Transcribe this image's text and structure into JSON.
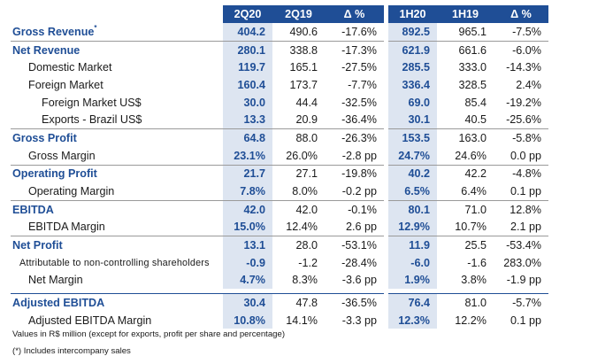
{
  "headers": [
    "2Q20",
    "2Q19",
    "Δ %",
    "1H20",
    "1H19",
    "Δ %"
  ],
  "main_rows": [
    {
      "label": "Gross Revenue",
      "sup": "*",
      "v": [
        "404.2",
        "490.6",
        "-17.6%",
        "892.5",
        "965.1",
        "-7.5%"
      ]
    },
    {
      "label": "Net Revenue",
      "v": [
        "280.1",
        "338.8",
        "-17.3%",
        "621.9",
        "661.6",
        "-6.0%"
      ]
    },
    {
      "label": "Domestic Market",
      "v": [
        "119.7",
        "165.1",
        "-27.5%",
        "285.5",
        "333.0",
        "-14.3%"
      ]
    },
    {
      "label": "Foreign Market",
      "v": [
        "160.4",
        "173.7",
        "-7.7%",
        "336.4",
        "328.5",
        "2.4%"
      ]
    },
    {
      "label": "Foreign Market US$",
      "v": [
        "30.0",
        "44.4",
        "-32.5%",
        "69.0",
        "85.4",
        "-19.2%"
      ]
    },
    {
      "label": "Exports - Brazil US$",
      "v": [
        "13.3",
        "20.9",
        "-36.4%",
        "30.1",
        "40.5",
        "-25.6%"
      ]
    },
    {
      "label": "Gross Profit",
      "v": [
        "64.8",
        "88.0",
        "-26.3%",
        "153.5",
        "163.0",
        "-5.8%"
      ]
    },
    {
      "label": "Gross Margin",
      "v": [
        "23.1%",
        "26.0%",
        "-2.8 pp",
        "24.7%",
        "24.6%",
        "0.0 pp"
      ]
    },
    {
      "label": "Operating Profit",
      "v": [
        "21.7",
        "27.1",
        "-19.8%",
        "40.2",
        "42.2",
        "-4.8%"
      ]
    },
    {
      "label": "Operating Margin",
      "v": [
        "7.8%",
        "8.0%",
        "-0.2 pp",
        "6.5%",
        "6.4%",
        "0.1 pp"
      ]
    },
    {
      "label": "EBITDA",
      "v": [
        "42.0",
        "42.0",
        "-0.1%",
        "80.1",
        "71.0",
        "12.8%"
      ]
    },
    {
      "label": "EBITDA Margin",
      "v": [
        "15.0%",
        "12.4%",
        "2.6 pp",
        "12.9%",
        "10.7%",
        "2.1 pp"
      ]
    },
    {
      "label": "Net Profit",
      "v": [
        "13.1",
        "28.0",
        "-53.1%",
        "11.9",
        "25.5",
        "-53.4%"
      ]
    },
    {
      "label": "Attributable to non-controlling shareholders",
      "v": [
        "-0.9",
        "-1.2",
        "-28.4%",
        "-6.0",
        "-1.6",
        "283.0%"
      ]
    },
    {
      "label": "Net Margin",
      "v": [
        "4.7%",
        "8.3%",
        "-3.6 pp",
        "1.9%",
        "3.8%",
        "-1.9 pp"
      ]
    }
  ],
  "adjusted_rows": [
    {
      "label": "Adjusted EBITDA",
      "v": [
        "30.4",
        "47.8",
        "-36.5%",
        "76.4",
        "81.0",
        "-5.7%"
      ]
    },
    {
      "label": "Adjusted EBITDA Margin",
      "v": [
        "10.8%",
        "14.1%",
        "-3.3 pp",
        "12.3%",
        "12.2%",
        "0.1 pp"
      ]
    }
  ],
  "notes": [
    "Values in R$ million (except for exports, profit per share and percentage)",
    "(*) Includes intercompany sales"
  ]
}
